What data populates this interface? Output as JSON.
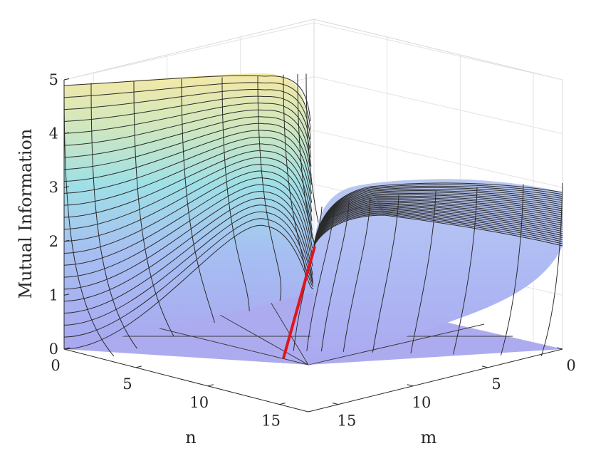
{
  "chart_data": {
    "type": "surface3d",
    "title": "",
    "xlabel": "m",
    "ylabel": "n",
    "zlabel": "Mutual Information",
    "xlim": [
      0,
      17
    ],
    "ylim": [
      0,
      17
    ],
    "zlim": [
      0,
      5
    ],
    "x_ticks": [
      "0",
      "5",
      "10",
      "15"
    ],
    "y_ticks": [
      "0",
      "5",
      "10",
      "15"
    ],
    "z_ticks": [
      "0",
      "1",
      "2",
      "3",
      "4",
      "5"
    ],
    "grid": true,
    "surface": {
      "description_values": {
        "z_at_m0_n_max": 4.8,
        "z_at_n0_m_max": 2.8,
        "z_at_diagonal": 1.9,
        "z_min": 0
      },
      "colormap": "parula-like (blue low to yellow high), semi-transparent",
      "highlight_line": {
        "color": "#e0141e",
        "from": [
          16.5,
          16.5,
          0
        ],
        "to": [
          0,
          0,
          1.9
        ]
      }
    }
  }
}
